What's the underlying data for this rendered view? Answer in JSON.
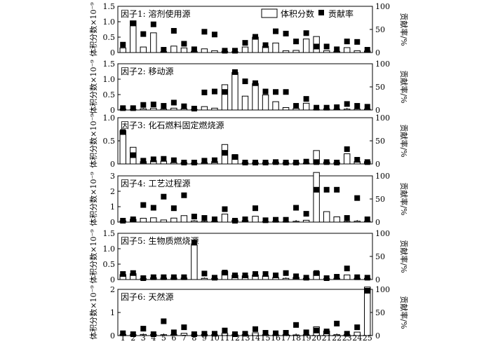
{
  "legend": {
    "volume_label": "体积分数",
    "contrib_label": "贡献率"
  },
  "axes": {
    "left_ylabel": "体积分数×10⁻⁹",
    "right_ylabel": "贡献率/%"
  },
  "chart_data": [
    {
      "type": "bar",
      "title": "因子1: 溶剂使用源",
      "categories": [
        "1",
        "2",
        "3",
        "4",
        "5",
        "6",
        "7",
        "8",
        "9",
        "10",
        "11",
        "12",
        "13",
        "14",
        "15",
        "16",
        "17",
        "18",
        "19",
        "20",
        "21",
        "22",
        "23",
        "24",
        "25"
      ],
      "ylim": [
        0,
        1.5
      ],
      "yticks": [
        "0",
        "0.5",
        "1.0",
        "1.5"
      ],
      "y2lim": [
        0,
        100
      ],
      "y2ticks": [
        "0",
        "50",
        "100"
      ],
      "series": [
        {
          "name": "体积分数",
          "type": "bar",
          "values": [
            0.15,
            1.03,
            0.18,
            0.64,
            0.03,
            0.21,
            0.15,
            0.04,
            0.12,
            0.06,
            0.04,
            0.03,
            0.18,
            0.5,
            0.2,
            0.31,
            0.06,
            0.07,
            0.44,
            0.52,
            0.06,
            0.04,
            0.16,
            0.06,
            0.05
          ]
        },
        {
          "name": "贡献率",
          "type": "scatter",
          "values": [
            17,
            63,
            40,
            61,
            6,
            47,
            19,
            7,
            45,
            39,
            4,
            4,
            21,
            34,
            16,
            46,
            41,
            24,
            42,
            13,
            13,
            7,
            24,
            23,
            6
          ]
        }
      ]
    },
    {
      "type": "bar",
      "title": "因子2: 移动源",
      "categories": [
        "1",
        "2",
        "3",
        "4",
        "5",
        "6",
        "7",
        "8",
        "9",
        "10",
        "11",
        "12",
        "13",
        "14",
        "15",
        "16",
        "17",
        "18",
        "19",
        "20",
        "21",
        "22",
        "23",
        "24",
        "25"
      ],
      "ylim": [
        0,
        1.5
      ],
      "yticks": [
        "0",
        "0.5",
        "1.0",
        "1.5"
      ],
      "y2lim": [
        0,
        100
      ],
      "y2ticks": [
        "0",
        "50",
        "100"
      ],
      "series": [
        {
          "name": "体积分数",
          "type": "bar",
          "values": [
            0.03,
            0.02,
            0.04,
            0.06,
            0.03,
            0.06,
            0.04,
            0.02,
            0.11,
            0.06,
            0.82,
            1.22,
            0.45,
            0.86,
            0.49,
            0.27,
            0.08,
            0.05,
            0.22,
            0.02,
            0.04,
            0.03,
            0.03,
            0.03,
            0.03
          ]
        },
        {
          "name": "贡献率",
          "type": "scatter",
          "values": [
            4,
            4,
            11,
            12,
            9,
            16,
            8,
            3,
            38,
            40,
            39,
            82,
            62,
            58,
            40,
            39,
            39,
            9,
            24,
            5,
            5,
            6,
            13,
            9,
            7
          ]
        }
      ]
    },
    {
      "type": "bar",
      "title": "因子3: 化石燃料固定燃烧源",
      "categories": [
        "1",
        "2",
        "3",
        "4",
        "5",
        "6",
        "7",
        "8",
        "9",
        "10",
        "11",
        "12",
        "13",
        "14",
        "15",
        "16",
        "17",
        "18",
        "19",
        "20",
        "21",
        "22",
        "23",
        "24",
        "25"
      ],
      "ylim": [
        0,
        1.0
      ],
      "yticks": [
        "0",
        "0.5",
        "1.0"
      ],
      "y2lim": [
        0,
        100
      ],
      "y2ticks": [
        "0",
        "50",
        "100"
      ],
      "series": [
        {
          "name": "体积分数",
          "type": "bar",
          "values": [
            0.72,
            0.36,
            0.05,
            0.07,
            0.06,
            0.03,
            0.03,
            0.02,
            0.03,
            0.05,
            0.42,
            0.2,
            0.03,
            0.03,
            0.03,
            0.04,
            0.03,
            0.03,
            0.02,
            0.29,
            0.04,
            0.03,
            0.22,
            0.05,
            0.05
          ]
        },
        {
          "name": "贡献率",
          "type": "scatter",
          "values": [
            69,
            19,
            7,
            10,
            11,
            8,
            3,
            3,
            7,
            8,
            24,
            15,
            3,
            3,
            3,
            4,
            3,
            3,
            5,
            4,
            4,
            3,
            32,
            9,
            4
          ]
        }
      ]
    },
    {
      "type": "bar",
      "title": "因子4: 工艺过程源",
      "categories": [
        "1",
        "2",
        "3",
        "4",
        "5",
        "6",
        "7",
        "8",
        "9",
        "10",
        "11",
        "12",
        "13",
        "14",
        "15",
        "16",
        "17",
        "18",
        "19",
        "20",
        "21",
        "22",
        "23",
        "24",
        "25"
      ],
      "ylim": [
        0,
        3
      ],
      "yticks": [
        "0",
        "1",
        "2",
        "3"
      ],
      "y2lim": [
        0,
        100
      ],
      "y2ticks": [
        "0",
        "50",
        "100"
      ],
      "series": [
        {
          "name": "体积分数",
          "type": "bar",
          "values": [
            0.08,
            0.18,
            0.25,
            0.28,
            0.14,
            0.26,
            0.42,
            0.08,
            0.05,
            0.05,
            0.52,
            0.13,
            0.1,
            0.38,
            0.04,
            0.06,
            0.03,
            0.05,
            0.12,
            3.22,
            0.68,
            0.34,
            0.05,
            0.06,
            0.05
          ]
        },
        {
          "name": "贡献率",
          "type": "scatter",
          "values": [
            3,
            6,
            37,
            31,
            55,
            30,
            58,
            12,
            9,
            6,
            28,
            3,
            6,
            30,
            4,
            5,
            5,
            31,
            18,
            70,
            70,
            70,
            9,
            52,
            6
          ]
        }
      ]
    },
    {
      "type": "bar",
      "title": "因子5: 生物质燃烧源",
      "categories": [
        "1",
        "2",
        "3",
        "4",
        "5",
        "6",
        "7",
        "8",
        "9",
        "10",
        "11",
        "12",
        "13",
        "14",
        "15",
        "16",
        "17",
        "18",
        "19",
        "20",
        "21",
        "22",
        "23",
        "24",
        "25"
      ],
      "ylim": [
        0,
        1.5
      ],
      "yticks": [
        "0",
        "0.5",
        "1.0",
        "1.5"
      ],
      "y2lim": [
        0,
        100
      ],
      "y2ticks": [
        "0",
        "50",
        "100"
      ],
      "series": [
        {
          "name": "体积分数",
          "type": "bar",
          "values": [
            0.16,
            0.19,
            0.03,
            0.06,
            0.05,
            0.05,
            0.05,
            1.12,
            0.04,
            0.04,
            0.27,
            0.14,
            0.12,
            0.15,
            0.12,
            0.07,
            0.04,
            0.07,
            0.04,
            0.26,
            0.03,
            0.04,
            0.15,
            0.04,
            0.04
          ]
        },
        {
          "name": "贡献率",
          "type": "scatter",
          "values": [
            12,
            14,
            3,
            5,
            5,
            5,
            5,
            80,
            13,
            4,
            15,
            9,
            9,
            12,
            12,
            9,
            14,
            7,
            4,
            14,
            3,
            6,
            24,
            5,
            4
          ]
        }
      ]
    },
    {
      "type": "bar",
      "title": "因子6: 天然源",
      "categories": [
        "1",
        "2",
        "3",
        "4",
        "5",
        "6",
        "7",
        "8",
        "9",
        "10",
        "11",
        "12",
        "13",
        "14",
        "15",
        "16",
        "17",
        "18",
        "19",
        "20",
        "21",
        "22",
        "23",
        "24",
        "25"
      ],
      "ylim": [
        0,
        2
      ],
      "yticks": [
        "0",
        "1",
        "2"
      ],
      "y2lim": [
        0,
        100
      ],
      "y2ticks": [
        "0",
        "50",
        "100"
      ],
      "series": [
        {
          "name": "体积分数",
          "type": "bar",
          "values": [
            0.05,
            0.04,
            0.05,
            0.05,
            0.04,
            0.05,
            0.1,
            0.03,
            0.05,
            0.04,
            0.1,
            0.04,
            0.04,
            0.12,
            0.04,
            0.03,
            0.04,
            0.03,
            0.04,
            0.38,
            0.2,
            0.04,
            0.04,
            0.15,
            2.1
          ]
        },
        {
          "name": "贡献率",
          "type": "scatter",
          "values": [
            5,
            3,
            15,
            3,
            31,
            7,
            18,
            3,
            4,
            4,
            11,
            3,
            4,
            14,
            6,
            5,
            6,
            23,
            7,
            11,
            9,
            26,
            4,
            18,
            97
          ]
        }
      ]
    }
  ]
}
